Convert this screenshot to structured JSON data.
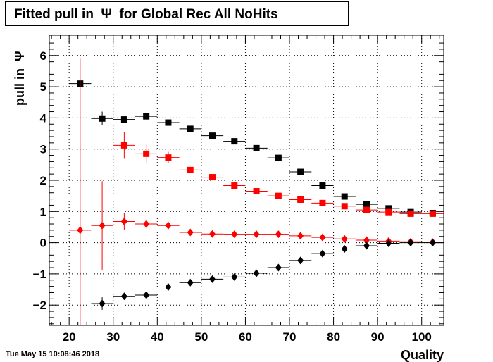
{
  "title": "Fitted pull in  Ψ  for Global Rec All NoHits",
  "timestamp": "Tue May 15 10:08:46 2018",
  "chart_data": {
    "type": "scatter",
    "title": "Fitted pull in  Ψ  for Global Rec All NoHits",
    "xlabel": "Quality",
    "ylabel": "pull in  Ψ",
    "xlim": [
      15.5,
      105
    ],
    "ylim": [
      -2.65,
      6.65
    ],
    "xticks": [
      20,
      30,
      40,
      50,
      60,
      70,
      80,
      90,
      100
    ],
    "yticks": [
      -2,
      -1,
      0,
      1,
      2,
      3,
      4,
      5,
      6
    ],
    "grid": true,
    "x": [
      22.5,
      27.5,
      32.5,
      37.5,
      42.5,
      47.5,
      52.5,
      57.5,
      62.5,
      67.5,
      72.5,
      77.5,
      82.5,
      87.5,
      92.5,
      97.5,
      102.5
    ],
    "x_halfwidth": 2.5,
    "series": [
      {
        "color": "#000000",
        "marker": "square",
        "values": [
          5.1,
          3.98,
          3.95,
          4.05,
          3.85,
          3.65,
          3.43,
          3.25,
          3.03,
          2.72,
          2.27,
          1.83,
          1.48,
          1.23,
          1.1,
          0.98,
          0.95
        ],
        "errors": [
          0,
          0.22,
          0.12,
          0.08,
          0.06,
          0.05,
          0.04,
          0.04,
          0.04,
          0.04,
          0.04,
          0.04,
          0.04,
          0.04,
          0.04,
          0.04,
          0.04
        ]
      },
      {
        "color": "#ff0000",
        "marker": "square",
        "values": [
          null,
          null,
          3.12,
          2.85,
          2.73,
          2.33,
          2.1,
          1.83,
          1.65,
          1.5,
          1.38,
          1.27,
          1.17,
          1.05,
          0.98,
          0.93,
          0.93
        ],
        "errors": [
          0,
          0,
          0.43,
          0.3,
          0.18,
          0.05,
          0.04,
          0.04,
          0.04,
          0.04,
          0.04,
          0.04,
          0.04,
          0.04,
          0.04,
          0.04,
          0.04
        ]
      },
      {
        "color": "#ff0000",
        "marker": "diamond",
        "values": [
          0.4,
          0.55,
          0.68,
          0.6,
          0.55,
          0.33,
          0.28,
          0.27,
          0.27,
          0.27,
          0.22,
          0.17,
          0.12,
          0.08,
          0.05,
          0.03,
          0.02
        ],
        "errors": [
          5.5,
          1.42,
          0.27,
          0.15,
          0.08,
          0.04,
          0.03,
          0.03,
          0.03,
          0.03,
          0.03,
          0.03,
          0.03,
          0.03,
          0.03,
          0.03,
          0.03
        ]
      },
      {
        "color": "#000000",
        "marker": "diamond",
        "values": [
          null,
          -1.95,
          -1.72,
          -1.68,
          -1.42,
          -1.28,
          -1.17,
          -1.1,
          -0.98,
          -0.8,
          -0.57,
          -0.35,
          -0.2,
          -0.1,
          -0.02,
          0.0,
          0.0
        ],
        "errors": [
          0,
          0.2,
          0.08,
          0.05,
          0.04,
          0.04,
          0.04,
          0.04,
          0.04,
          0.04,
          0.04,
          0.04,
          0.04,
          0.04,
          0.04,
          0.04,
          0.04
        ]
      }
    ]
  }
}
